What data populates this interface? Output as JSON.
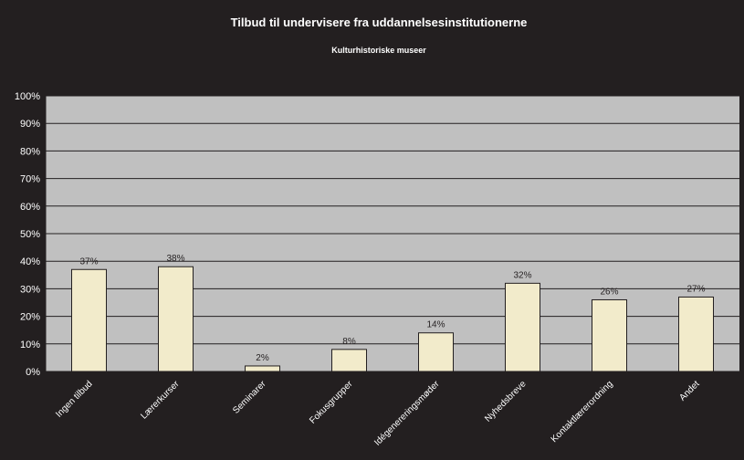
{
  "chart_data": {
    "type": "bar",
    "title": "Tilbud til undervisere fra uddannelsesinstitutionerne",
    "subtitle": "Kulturhistoriske museer",
    "categories": [
      "Ingen tilbud",
      "Lærerkurser",
      "Seminarer",
      "Fokusgrupper",
      "Idégenereringsmøder",
      "Nyhedsbreve",
      "Kontaktlærerordning",
      "Andet"
    ],
    "values": [
      37,
      38,
      2,
      8,
      14,
      32,
      26,
      27
    ],
    "data_labels": [
      "37%",
      "38%",
      "2%",
      "8%",
      "14%",
      "32%",
      "26%",
      "27%"
    ],
    "yticks": [
      "0%",
      "10%",
      "20%",
      "30%",
      "40%",
      "50%",
      "60%",
      "70%",
      "80%",
      "90%",
      "100%"
    ],
    "ylim": [
      0,
      100
    ],
    "xlabel": "",
    "ylabel": "",
    "grid": true,
    "legend": "none",
    "colors": {
      "background": "#231f20",
      "plot_area": "#c0c0c0",
      "bar_fill": "#f2ebcb",
      "bar_stroke": "#231f20",
      "text": "#ffffff",
      "gridline": "#231f20"
    }
  }
}
